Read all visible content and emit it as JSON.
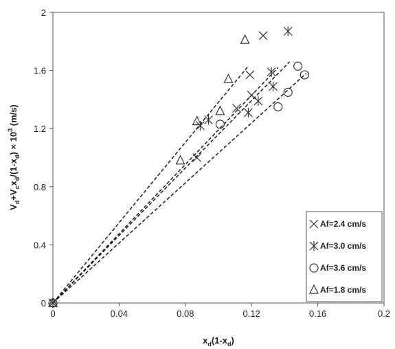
{
  "chart_data": {
    "type": "scatter",
    "x_label_parts": [
      "x",
      "d",
      "(1-x",
      "d",
      ")"
    ],
    "y_label_parts": [
      "V",
      "d",
      "+V",
      "c",
      "x",
      "d",
      "/(1-x",
      "d",
      ") × 10",
      "3",
      " (m/s)"
    ],
    "xlim": [
      0,
      0.2
    ],
    "ylim": [
      0,
      2
    ],
    "xticks": [
      0,
      0.04,
      0.08,
      0.12,
      0.16,
      0.2
    ],
    "yticks": [
      0,
      0.4,
      0.8,
      1.2,
      1.6,
      2
    ],
    "xtick_labels": [
      "0",
      "0.04",
      "0.08",
      "0.12",
      "0.16",
      "0.2"
    ],
    "ytick_labels": [
      "0",
      "0.4",
      "0.8",
      "1.2",
      "1.6",
      "2"
    ],
    "grid": false,
    "legend_position": "bottom-right",
    "series": [
      {
        "name": "Af=2.4 cm/s",
        "marker": "x",
        "points": [
          [
            0,
            0
          ],
          [
            0.087,
            1.0
          ],
          [
            0.111,
            1.34
          ],
          [
            0.12,
            1.43
          ],
          [
            0.119,
            1.57
          ],
          [
            0.127,
            1.84
          ]
        ],
        "trend_end": [
          0.136,
          1.62
        ]
      },
      {
        "name": "Af=3.0 cm/s",
        "marker": "asterisk",
        "points": [
          [
            0,
            0
          ],
          [
            0.089,
            1.22
          ],
          [
            0.094,
            1.26
          ],
          [
            0.118,
            1.31
          ],
          [
            0.124,
            1.39
          ],
          [
            0.133,
            1.49
          ],
          [
            0.132,
            1.59
          ],
          [
            0.142,
            1.87
          ]
        ],
        "trend_end": [
          0.143,
          1.66
        ]
      },
      {
        "name": "Af=3.6 cm/s",
        "marker": "circle",
        "points": [
          [
            0,
            0
          ],
          [
            0.101,
            1.23
          ],
          [
            0.136,
            1.35
          ],
          [
            0.142,
            1.45
          ],
          [
            0.148,
            1.63
          ],
          [
            0.152,
            1.57
          ]
        ],
        "trend_end": [
          0.153,
          1.58
        ]
      },
      {
        "name": "Af=1.8 cm/s",
        "marker": "triangle",
        "points": [
          [
            0,
            0
          ],
          [
            0.077,
            0.98
          ],
          [
            0.087,
            1.25
          ],
          [
            0.101,
            1.32
          ],
          [
            0.106,
            1.54
          ],
          [
            0.116,
            1.81
          ]
        ],
        "trend_end": [
          0.118,
          1.63
        ]
      }
    ],
    "colors": {
      "marker": "#333333",
      "trendline": "#1a1a1a",
      "axis": "#555555",
      "text": "#222222"
    }
  }
}
